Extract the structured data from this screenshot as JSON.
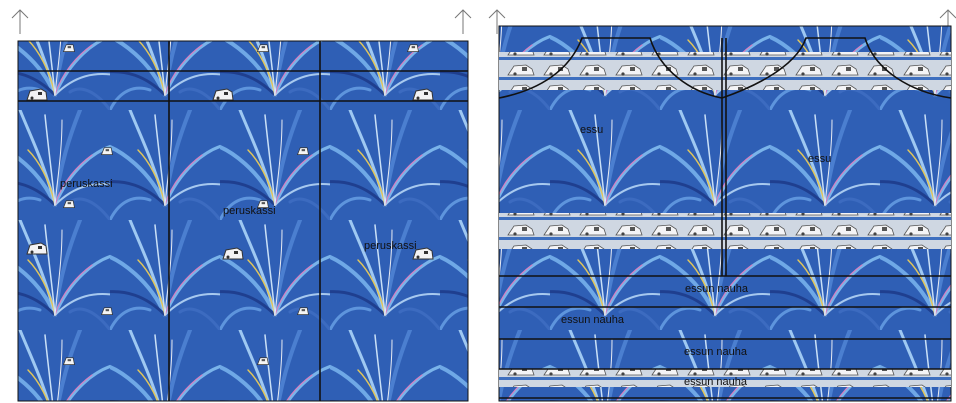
{
  "panels": [
    {
      "id": "left",
      "labels": [
        "peruskassi",
        "peruskassi",
        "peruskassi"
      ]
    },
    {
      "id": "right",
      "labels": [
        "essu",
        "essu",
        "essun nauha",
        "essun nauha",
        "essun nauha",
        "essun nauha"
      ]
    }
  ],
  "colors": {
    "fabric_base": "#2f5fb5",
    "fabric_light": "#7fb3e8",
    "fabric_accent": "#e2c75a",
    "fabric_pink": "#d77fc0",
    "stripe_band": "#d6dde6",
    "cut_lines": "#111111"
  },
  "icons": [
    "arrow-up-icon",
    "sewing-machine-icon",
    "iron-icon"
  ]
}
